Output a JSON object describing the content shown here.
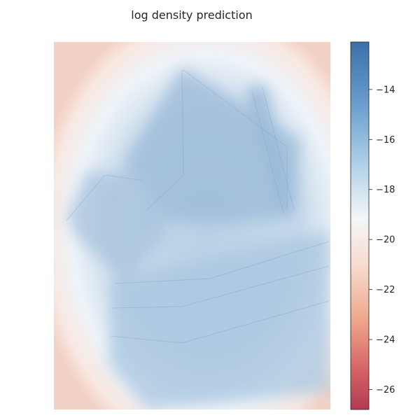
{
  "chart_data": {
    "type": "heatmap",
    "title": "log density prediction",
    "colorbar": {
      "colormap": "RdBu",
      "vmin": -26.8,
      "vmax": -12.1,
      "ticks": [
        -14,
        -16,
        -18,
        -20,
        -22,
        -24,
        -26
      ],
      "tick_labels": [
        "−14",
        "−16",
        "−18",
        "−20",
        "−22",
        "−24",
        "−26"
      ]
    },
    "grid": false,
    "background": "photograph of a multi-storey building overlaid with the density map (semi-transparent)",
    "colors": {
      "high": "#2166ac",
      "mid": "#f7f7f7",
      "low": "#b2182b"
    }
  }
}
